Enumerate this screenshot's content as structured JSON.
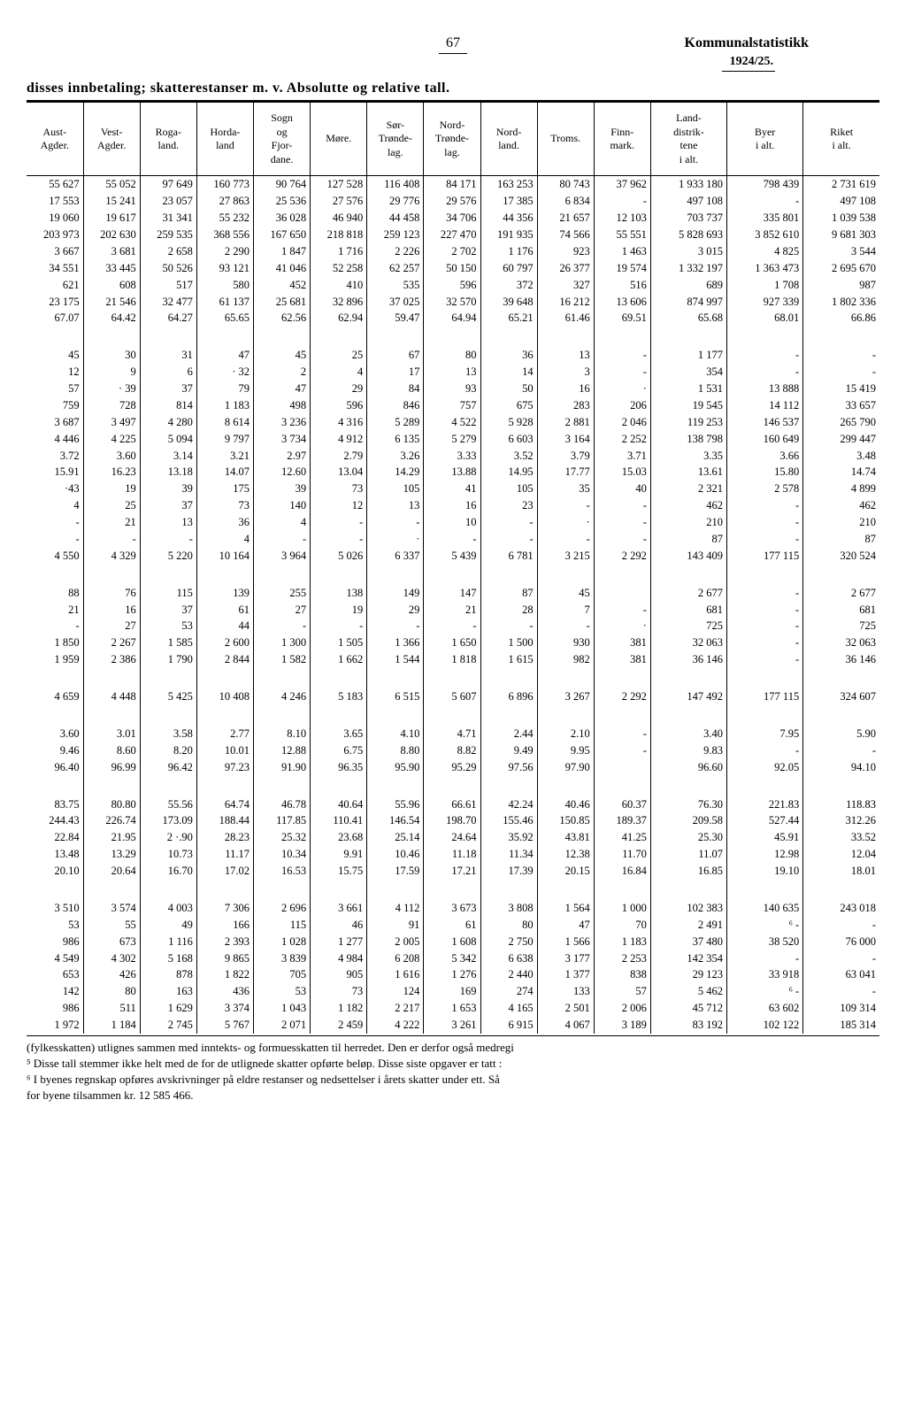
{
  "page_number": "67",
  "stat_title": "Kommunalstatistikk",
  "year": "1924/25.",
  "subtitle": "disses innbetaling; skatterestanser m. v.  Absolutte og relative tall.",
  "columns": [
    "Aust-\nAgder.",
    "Vest-\nAgder.",
    "Roga-\nland.",
    "Horda-\nland",
    "Sogn\nog\nFjor-\ndane.",
    "Møre.",
    "Sør-\nTrønde-\nlag.",
    "Nord-\nTrønde-\nlag.",
    "Nord-\nland.",
    "Troms.",
    "Finn-\nmark.",
    "Land-\ndistrik-\ntene\ni alt.",
    "Byer\ni alt.",
    "Riket\ni alt."
  ],
  "col_widths": [
    "6.4%",
    "6.4%",
    "6.4%",
    "6.4%",
    "6.4%",
    "6.4%",
    "6.4%",
    "6.4%",
    "6.4%",
    "6.4%",
    "6.4%",
    "8.6%",
    "8.6%",
    "8.6%"
  ],
  "blocks": [
    {
      "rows": [
        [
          "55 627",
          "55 052",
          "97 649",
          "160 773",
          "90 764",
          "127 528",
          "116 408",
          "84 171",
          "163 253",
          "80 743",
          "37 962",
          "1 933 180",
          "798 439",
          "2 731 619"
        ],
        [
          "17 553",
          "15 241",
          "23 057",
          "27 863",
          "25 536",
          "27 576",
          "29 776",
          "29 576",
          "17 385",
          "6 834",
          "-",
          "497 108",
          "-",
          "497 108"
        ],
        [
          "19 060",
          "19 617",
          "31 341",
          "55 232",
          "36 028",
          "46 940",
          "44 458",
          "34 706",
          "44 356",
          "21 657",
          "12 103",
          "703 737",
          "335 801",
          "1 039 538"
        ],
        [
          "203 973",
          "202 630",
          "259 535",
          "368 556",
          "167 650",
          "218 818",
          "259 123",
          "227 470",
          "191 935",
          "74 566",
          "55 551",
          "5 828 693",
          "3 852 610",
          "9 681 303"
        ],
        [
          "3 667",
          "3 681",
          "2 658",
          "2 290",
          "1 847",
          "1 716",
          "2 226",
          "2 702",
          "1 176",
          "923",
          "1 463",
          "3 015",
          "4 825",
          "3 544"
        ],
        [
          "34 551",
          "33 445",
          "50 526",
          "93 121",
          "41 046",
          "52 258",
          "62 257",
          "50 150",
          "60 797",
          "26 377",
          "19 574",
          "1 332 197",
          "1 363 473",
          "2 695 670"
        ],
        [
          "621",
          "608",
          "517",
          "580",
          "452",
          "410",
          "535",
          "596",
          "372",
          "327",
          "516",
          "689",
          "1 708",
          "987"
        ],
        [
          "23 175",
          "21 546",
          "32 477",
          "61 137",
          "25 681",
          "32 896",
          "37 025",
          "32 570",
          "39 648",
          "16 212",
          "13 606",
          "874 997",
          "927 339",
          "1 802 336"
        ],
        [
          "67.07",
          "64.42",
          "64.27",
          "65.65",
          "62.56",
          "62.94",
          "59.47",
          "64.94",
          "65.21",
          "61.46",
          "69.51",
          "65.68",
          "68.01",
          "66.86"
        ]
      ]
    },
    {
      "rows": [
        [
          "45",
          "30",
          "31",
          "47",
          "45",
          "25",
          "67",
          "80",
          "36",
          "13",
          "-",
          "1 177",
          "-",
          "-"
        ],
        [
          "12",
          "9",
          "6",
          "· 32",
          "2",
          "4",
          "17",
          "13",
          "14",
          "3",
          "-",
          "354",
          "-",
          "-"
        ],
        [
          "57",
          "· 39",
          "37",
          "79",
          "47",
          "29",
          "84",
          "93",
          "50",
          "16",
          "·",
          "1 531",
          "13 888",
          "15 419"
        ],
        [
          "759",
          "728",
          "814",
          "1 183",
          "498",
          "596",
          "846",
          "757",
          "675",
          "283",
          "206",
          "19 545",
          "14 112",
          "33 657"
        ],
        [
          "3 687",
          "3 497",
          "4 280",
          "8 614",
          "3 236",
          "4 316",
          "5 289",
          "4 522",
          "5 928",
          "2 881",
          "2 046",
          "119 253",
          "146 537",
          "265 790"
        ],
        [
          "4 446",
          "4 225",
          "5 094",
          "9 797",
          "3 734",
          "4 912",
          "6 135",
          "5 279",
          "6 603",
          "3 164",
          "2 252",
          "138 798",
          "160 649",
          "299 447"
        ],
        [
          "3.72",
          "3.60",
          "3.14",
          "3.21",
          "2.97",
          "2.79",
          "3.26",
          "3.33",
          "3.52",
          "3.79",
          "3.71",
          "3.35",
          "3.66",
          "3.48"
        ],
        [
          "15.91",
          "16.23",
          "13.18",
          "14.07",
          "12.60",
          "13.04",
          "14.29",
          "13.88",
          "14.95",
          "17.77",
          "15.03",
          "13.61",
          "15.80",
          "14.74"
        ],
        [
          "·43",
          "19",
          "39",
          "175",
          "39",
          "73",
          "105",
          "41",
          "105",
          "35",
          "40",
          "2 321",
          "2 578",
          "4 899"
        ],
        [
          "4",
          "25",
          "37",
          "73",
          "140",
          "12",
          "13",
          "16",
          "23",
          "-",
          "-",
          "462",
          "-",
          "462"
        ],
        [
          "-",
          "21",
          "13",
          "36",
          "4",
          "-",
          "-",
          "10",
          "-",
          "·",
          "-",
          "210",
          "-",
          "210"
        ],
        [
          "-",
          "-",
          "-",
          "4",
          "-",
          "-",
          "·",
          "-",
          "-",
          "-",
          "-",
          "87",
          "-",
          "87"
        ],
        [
          "4 550",
          "4 329",
          "5 220",
          "10 164",
          "3 964",
          "5 026",
          "6 337",
          "5 439",
          "6 781",
          "3 215",
          "2 292",
          "143 409",
          "177 115",
          "320 524"
        ]
      ]
    },
    {
      "rows": [
        [
          "88",
          "76",
          "115",
          "139",
          "255",
          "138",
          "149",
          "147",
          "87",
          "45",
          "",
          "2 677",
          "-",
          "2 677"
        ],
        [
          "21",
          "16",
          "37",
          "61",
          "27",
          "19",
          "29",
          "21",
          "28",
          "7",
          "-",
          "681",
          "-",
          "681"
        ],
        [
          "-",
          "27",
          "53",
          "44",
          "-",
          "-",
          "-",
          "-",
          "-",
          "-",
          "·",
          "725",
          "-",
          "725"
        ],
        [
          "1 850",
          "2 267",
          "1 585",
          "2 600",
          "1 300",
          "1 505",
          "1 366",
          "1 650",
          "1 500",
          "930",
          "381",
          "32 063",
          "-",
          "32 063"
        ],
        [
          "1 959",
          "2 386",
          "1 790",
          "2 844",
          "1 582",
          "1 662",
          "1 544",
          "1 818",
          "1 615",
          "982",
          "381",
          "36 146",
          "-",
          "36 146"
        ]
      ]
    },
    {
      "rows": [
        [
          "4 659",
          "4 448",
          "5 425",
          "10 408",
          "4 246",
          "5 183",
          "6 515",
          "5 607",
          "6 896",
          "3 267",
          "2 292",
          "147 492",
          "177 115",
          "324 607"
        ]
      ]
    },
    {
      "rows": [
        [
          "3.60",
          "3.01",
          "3.58",
          "2.77",
          "8.10",
          "3.65",
          "4.10",
          "4.71",
          "2.44",
          "2.10",
          "-",
          "3.40",
          "7.95",
          "5.90"
        ],
        [
          "9.46",
          "8.60",
          "8.20",
          "10.01",
          "12.88",
          "6.75",
          "8.80",
          "8.82",
          "9.49",
          "9.95",
          "-",
          "9.83",
          "-",
          "-"
        ],
        [
          "96.40",
          "96.99",
          "96.42",
          "97.23",
          "91.90",
          "96.35",
          "95.90",
          "95.29",
          "97.56",
          "97.90",
          "",
          "96.60",
          "92.05",
          "94.10"
        ]
      ]
    },
    {
      "rows": [
        [
          "83.75",
          "80.80",
          "55.56",
          "64.74",
          "46.78",
          "40.64",
          "55.96",
          "66.61",
          "42.24",
          "40.46",
          "60.37",
          "76.30",
          "221.83",
          "118.83"
        ],
        [
          "244.43",
          "226.74",
          "173.09",
          "188.44",
          "117.85",
          "110.41",
          "146.54",
          "198.70",
          "155.46",
          "150.85",
          "189.37",
          "209.58",
          "527.44",
          "312.26"
        ],
        [
          "22.84",
          "21.95",
          "2 ·.90",
          "28.23",
          "25.32",
          "23.68",
          "25.14",
          "24.64",
          "35.92",
          "43.81",
          "41.25",
          "25.30",
          "45.91",
          "33.52"
        ],
        [
          "13.48",
          "13.29",
          "10.73",
          "11.17",
          "10.34",
          "9.91",
          "10.46",
          "11.18",
          "11.34",
          "12.38",
          "11.70",
          "11.07",
          "12.98",
          "12.04"
        ],
        [
          "20.10",
          "20.64",
          "16.70",
          "17.02",
          "16.53",
          "15.75",
          "17.59",
          "17.21",
          "17.39",
          "20.15",
          "16.84",
          "16.85",
          "19.10",
          "18.01"
        ]
      ]
    },
    {
      "rows": [
        [
          "3 510",
          "3 574",
          "4 003",
          "7 306",
          "2 696",
          "3 661",
          "4 112",
          "3 673",
          "3 808",
          "1 564",
          "1 000",
          "102 383",
          "140 635",
          "243 018"
        ],
        [
          "53",
          "55",
          "49",
          "166",
          "115",
          "46",
          "91",
          "61",
          "80",
          "47",
          "70",
          "2 491",
          "⁶  -",
          "-"
        ],
        [
          "986",
          "673",
          "1 116",
          "2 393",
          "1 028",
          "1 277",
          "2 005",
          "1 608",
          "2 750",
          "1 566",
          "1 183",
          "37 480",
          "38 520",
          "76 000"
        ],
        [
          "4 549",
          "4 302",
          "5 168",
          "9 865",
          "3 839",
          "4 984",
          "6 208",
          "5 342",
          "6 638",
          "3 177",
          "2 253",
          "142 354",
          "-",
          "-"
        ],
        [
          "653",
          "426",
          "878",
          "1 822",
          "705",
          "905",
          "1 616",
          "1 276",
          "2 440",
          "1 377",
          "838",
          "29 123",
          "33 918",
          "63 041"
        ],
        [
          "142",
          "80",
          "163",
          "436",
          "53",
          "73",
          "124",
          "169",
          "274",
          "133",
          "57",
          "5 462",
          "⁶  -",
          "-"
        ],
        [
          "986",
          "511",
          "1 629",
          "3 374",
          "1 043",
          "1 182",
          "2 217",
          "1 653",
          "4 165",
          "2 501",
          "2 006",
          "45 712",
          "63 602",
          "109 314"
        ],
        [
          "1 972",
          "1 184",
          "2 745",
          "5 767",
          "2 071",
          "2 459",
          "4 222",
          "3 261",
          "6 915",
          "4 067",
          "3 189",
          "83 192",
          "102 122",
          "185 314"
        ]
      ]
    }
  ],
  "footnotes": "(fylkesskatten) utlignes sammen med inntekts- og formuesskatten til herredet.  Den er derfor også medregi\n⁵  Disse tall stemmer ikke helt med de for de utlignede skatter opførte beløp.  Disse siste opgaver er tatt :\n⁶  I byenes regnskap opføres avskrivninger på eldre restanser og nedsettelser i årets skatter under ett.  Så\nfor byene tilsammen kr. 12 585 466."
}
